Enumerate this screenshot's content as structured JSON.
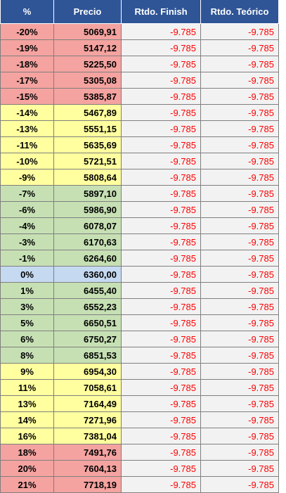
{
  "table": {
    "header": [
      "%",
      "Precio",
      "Rtdo. Finish",
      "Rtdo. Teórico"
    ],
    "header_color": "#2f5597",
    "band_colors": {
      "red": "#f4a3a0",
      "yellow": "#ffff9f",
      "green": "#c6e0b4",
      "blue": "#c5d9f1"
    },
    "rows": [
      [
        "-20%",
        "5069,91",
        "-9.785",
        "-9.785"
      ],
      [
        "-19%",
        "5147,12",
        "-9.785",
        "-9.785"
      ],
      [
        "-18%",
        "5225,50",
        "-9.785",
        "-9.785"
      ],
      [
        "-17%",
        "5305,08",
        "-9.785",
        "-9.785"
      ],
      [
        "-15%",
        "5385,87",
        "-9.785",
        "-9.785"
      ],
      [
        "-14%",
        "5467,89",
        "-9.785",
        "-9.785"
      ],
      [
        "-13%",
        "5551,15",
        "-9.785",
        "-9.785"
      ],
      [
        "-11%",
        "5635,69",
        "-9.785",
        "-9.785"
      ],
      [
        "-10%",
        "5721,51",
        "-9.785",
        "-9.785"
      ],
      [
        "-9%",
        "5808,64",
        "-9.785",
        "-9.785"
      ],
      [
        "-7%",
        "5897,10",
        "-9.785",
        "-9.785"
      ],
      [
        "-6%",
        "5986,90",
        "-9.785",
        "-9.785"
      ],
      [
        "-4%",
        "6078,07",
        "-9.785",
        "-9.785"
      ],
      [
        "-3%",
        "6170,63",
        "-9.785",
        "-9.785"
      ],
      [
        "-1%",
        "6264,60",
        "-9.785",
        "-9.785"
      ],
      [
        "0%",
        "6360,00",
        "-9.785",
        "-9.785"
      ],
      [
        "1%",
        "6455,40",
        "-9.785",
        "-9.785"
      ],
      [
        "3%",
        "6552,23",
        "-9.785",
        "-9.785"
      ],
      [
        "5%",
        "6650,51",
        "-9.785",
        "-9.785"
      ],
      [
        "6%",
        "6750,27",
        "-9.785",
        "-9.785"
      ],
      [
        "8%",
        "6851,53",
        "-9.785",
        "-9.785"
      ],
      [
        "9%",
        "6954,30",
        "-9.785",
        "-9.785"
      ],
      [
        "11%",
        "7058,61",
        "-9.785",
        "-9.785"
      ],
      [
        "13%",
        "7164,49",
        "-9.785",
        "-9.785"
      ],
      [
        "14%",
        "7271,96",
        "-9.785",
        "-9.785"
      ],
      [
        "16%",
        "7381,04",
        "-9.785",
        "-9.785"
      ],
      [
        "18%",
        "7491,76",
        "-9.785",
        "-9.785"
      ],
      [
        "20%",
        "7604,13",
        "-9.785",
        "-9.785"
      ],
      [
        "21%",
        "7718,19",
        "-9.785",
        "-9.785"
      ]
    ],
    "row_bands": [
      "red",
      "red",
      "red",
      "red",
      "red",
      "yellow",
      "yellow",
      "yellow",
      "yellow",
      "yellow",
      "green",
      "green",
      "green",
      "green",
      "green",
      "blue",
      "green",
      "green",
      "green",
      "green",
      "green",
      "yellow",
      "yellow",
      "yellow",
      "yellow",
      "yellow",
      "red",
      "red",
      "red"
    ]
  }
}
